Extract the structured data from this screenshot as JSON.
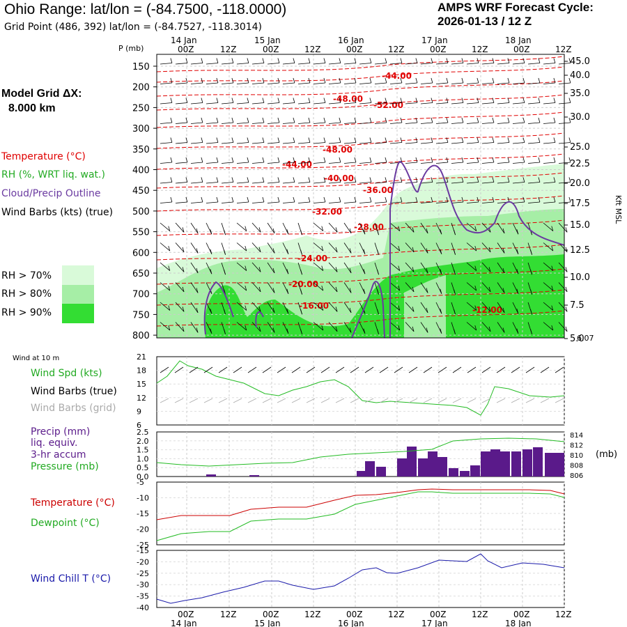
{
  "header": {
    "title": "Ohio Range:  lat/lon = (-84.7500, -118.0000)",
    "grid_point": "Grid Point (486, 392) lat/lon = (-84.7527, -118.3014)",
    "cycle_line1": "AMPS WRF Forecast Cycle:",
    "cycle_line2": "2026-01-13 / 12  Z"
  },
  "left_labels": {
    "model_grid": "Model Grid ΔX:",
    "model_grid_val": "8.000 km",
    "temperature": "Temperature (°C)",
    "rh": "RH (%, WRT liq. wat.)",
    "cloud": "Cloud/Precip Outline",
    "wind_barbs": "Wind Barbs (kts) (true)",
    "rh70": "RH > 70%",
    "rh80": "RH > 80%",
    "rh90": "RH > 90%",
    "wind_10m": "Wind at 10 m",
    "wind_spd": "Wind Spd (kts)",
    "barbs_true": "Wind Barbs (true)",
    "barbs_grid": "Wind Barbs (grid)",
    "precip1": "Precip (mm)",
    "precip2": "liq. equiv.",
    "precip3": "3-hr accum",
    "pressure": "Pressure (mb)",
    "temp2": "Temperature (°C)",
    "dewpoint": "Dewpoint (°C)",
    "windchill": "Wind Chill T (°C)",
    "p_unit": "P (mb)",
    "kft": "Kft MSL",
    "mb_unit": "(mb)"
  },
  "colors": {
    "temperature": "#e00000",
    "rh70": "#d9fad9",
    "rh80": "#a6eea6",
    "rh90": "#33dd33",
    "cloud": "#6a3aa0",
    "wind_spd": "#22bb22",
    "barbs_grid": "#aaaaaa",
    "precip": "#5a1a8a",
    "pressure": "#22bb22",
    "temp_line": "#cc0000",
    "dew_line": "#22bb22",
    "windchill": "#1a1aaa"
  },
  "chart_data": [
    {
      "type": "heatmap",
      "x_top": {
        "ticks": [
          "00Z",
          "12Z",
          "00Z",
          "12Z",
          "00Z",
          "12Z",
          "00Z",
          "12Z",
          "00Z",
          "12Z"
        ],
        "dates": [
          "14 Jan",
          "15 Jan",
          "16 Jan",
          "17 Jan",
          "18 Jan"
        ]
      },
      "y_pressure": [
        "150",
        "200",
        "250",
        "300",
        "350",
        "400",
        "450",
        "500",
        "550",
        "600",
        "650",
        "700",
        "750",
        "800"
      ],
      "y_height": [
        "45.0",
        "40.0",
        "35.0",
        "30.0",
        "25.0",
        "22.5",
        "20.0",
        "17.5",
        "15.0",
        "12.5",
        "10.0",
        "7.5",
        "5.0"
      ],
      "y_height_bottom": "6.07",
      "temp_labels": [
        "-44.00",
        "-48.00",
        "-52.00",
        "-48.00",
        "-44.00",
        "-40.00",
        "-36.00",
        "-32.00",
        "-28.00",
        "-24.00",
        "-20.00",
        "-16.00",
        "-12.00"
      ]
    },
    {
      "type": "line",
      "ylabels": [
        "21",
        "18",
        "15",
        "12",
        "9",
        "6"
      ],
      "ylim": [
        6,
        21
      ]
    },
    {
      "type": "bar",
      "ylabels": [
        "2.5",
        "2.0",
        "1.5",
        "1.0",
        "0.5",
        "0.0"
      ],
      "ylabels_right": [
        "814",
        "812",
        "810",
        "808",
        "806"
      ]
    },
    {
      "type": "line",
      "ylabels": [
        "-5",
        "-10",
        "-15",
        "-20",
        "-25"
      ]
    },
    {
      "type": "line",
      "ylabels": [
        "-15",
        "-20",
        "-25",
        "-30",
        "-35",
        "-40"
      ]
    }
  ],
  "bottom_axis": {
    "ticks": [
      "00Z",
      "12Z",
      "00Z",
      "12Z",
      "00Z",
      "12Z",
      "00Z",
      "12Z",
      "00Z",
      "12Z"
    ],
    "dates": [
      "14 Jan",
      "15 Jan",
      "16 Jan",
      "17 Jan",
      "18 Jan"
    ]
  }
}
